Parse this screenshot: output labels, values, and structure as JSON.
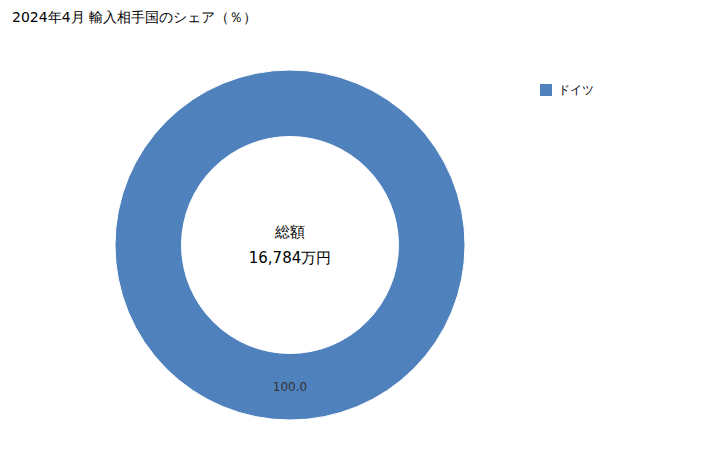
{
  "chart_data": {
    "type": "donut",
    "title": "2024年4月 輸入相手国のシェア（％）",
    "categories": [
      "ドイツ"
    ],
    "values": [
      100.0
    ],
    "colors": [
      "#4F81BD"
    ],
    "data_labels": true,
    "value_labels": [
      "100.0"
    ],
    "annotations": [
      "総額",
      "16,784万円"
    ],
    "legend": "right"
  }
}
